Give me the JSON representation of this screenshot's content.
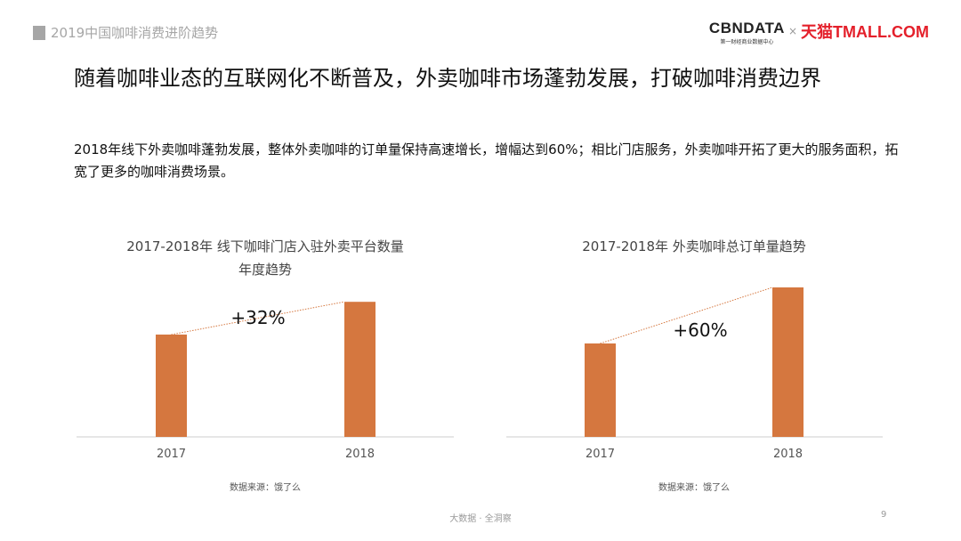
{
  "header": {
    "section": "2019中国咖啡消费进阶趋势",
    "logo_cbn": "CBNDATA",
    "logo_cbn_sub": "第一财经商业数据中心",
    "logo_x": "×",
    "logo_tmall": "天猫TMALL.COM"
  },
  "title": "随着咖啡业态的互联网化不断普及，外卖咖啡市场蓬勃发展，打破咖啡消费边界",
  "description": "2018年线下外卖咖啡蓬勃发展，整体外卖咖啡的订单量保持高速增长，增幅达到60%；相比门店服务，外卖咖啡开拓了更大的服务面积，拓宽了更多的咖啡消费场景。",
  "footer": {
    "text": "大数据 · 全洞察",
    "page": "9"
  },
  "colors": {
    "bar": "#d5773f",
    "trend": "#d5773f"
  },
  "chart_data": [
    {
      "type": "bar",
      "title": "2017-2018年 线下咖啡门店入驻外卖平台数量",
      "title_line2": "年度趋势",
      "categories": [
        "2017",
        "2018"
      ],
      "values": [
        100,
        132
      ],
      "annotation": "+32%",
      "source": "数据来源：饿了么",
      "grid": false
    },
    {
      "type": "bar",
      "title": "2017-2018年 外卖咖啡总订单量趋势",
      "title_line2": "",
      "categories": [
        "2017",
        "2018"
      ],
      "values": [
        100,
        160
      ],
      "annotation": "+60%",
      "source": "数据来源：饿了么",
      "grid": false
    }
  ]
}
